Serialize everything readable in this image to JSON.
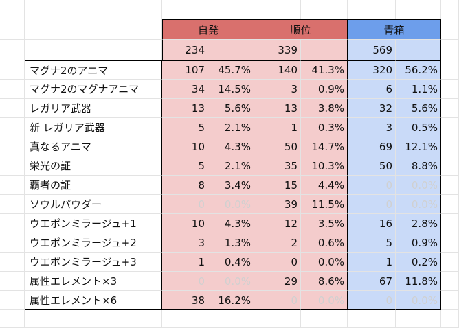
{
  "groups": [
    {
      "label": "自発",
      "total": "234"
    },
    {
      "label": "順位",
      "total": "339"
    },
    {
      "label": "青箱",
      "total": "569"
    }
  ],
  "rows": [
    {
      "label": "マグナ2のアニマ",
      "v": [
        "107",
        "45.7%",
        "140",
        "41.3%",
        "320",
        "56.2%"
      ],
      "dim": [
        false,
        false,
        false
      ]
    },
    {
      "label": "マグナ2のマグナアニマ",
      "v": [
        "34",
        "14.5%",
        "3",
        "0.9%",
        "6",
        "1.1%"
      ],
      "dim": [
        false,
        false,
        false
      ]
    },
    {
      "label": "レガリア武器",
      "v": [
        "13",
        "5.6%",
        "13",
        "3.8%",
        "32",
        "5.6%"
      ],
      "dim": [
        false,
        false,
        false
      ]
    },
    {
      "label": "新 レガリア武器",
      "v": [
        "5",
        "2.1%",
        "1",
        "0.3%",
        "3",
        "0.5%"
      ],
      "dim": [
        false,
        false,
        false
      ]
    },
    {
      "label": "真なるアニマ",
      "v": [
        "10",
        "4.3%",
        "50",
        "14.7%",
        "69",
        "12.1%"
      ],
      "dim": [
        false,
        false,
        false
      ]
    },
    {
      "label": "栄光の証",
      "v": [
        "5",
        "2.1%",
        "35",
        "10.3%",
        "50",
        "8.8%"
      ],
      "dim": [
        false,
        false,
        false
      ]
    },
    {
      "label": "覇者の証",
      "v": [
        "8",
        "3.4%",
        "15",
        "4.4%",
        "0",
        "0.0%"
      ],
      "dim": [
        false,
        false,
        true
      ]
    },
    {
      "label": "ソウルパウダー",
      "v": [
        "0",
        "0.0%",
        "39",
        "11.5%",
        "0",
        "0.0%"
      ],
      "dim": [
        true,
        false,
        true
      ]
    },
    {
      "label": "ウエポンミラージュ+1",
      "v": [
        "10",
        "4.3%",
        "12",
        "3.5%",
        "16",
        "2.8%"
      ],
      "dim": [
        false,
        false,
        false
      ]
    },
    {
      "label": "ウエポンミラージュ+2",
      "v": [
        "3",
        "1.3%",
        "2",
        "0.6%",
        "5",
        "0.9%"
      ],
      "dim": [
        false,
        false,
        false
      ]
    },
    {
      "label": "ウエポンミラージュ+3",
      "v": [
        "1",
        "0.4%",
        "0",
        "0.0%",
        "1",
        "0.2%"
      ],
      "dim": [
        false,
        false,
        false
      ]
    },
    {
      "label": "属性エレメント×3",
      "v": [
        "0",
        "0.0%",
        "29",
        "8.6%",
        "67",
        "11.8%"
      ],
      "dim": [
        true,
        false,
        false
      ]
    },
    {
      "label": "属性エレメント×6",
      "v": [
        "38",
        "16.2%",
        "0",
        "0.0%",
        "0",
        "0.0%"
      ],
      "dim": [
        false,
        true,
        true
      ]
    }
  ],
  "colors": {
    "red_header": "#d9706d",
    "red_fill": "#f4cccc",
    "blue_header": "#6d9eeb",
    "blue_fill": "#c9daf8"
  }
}
